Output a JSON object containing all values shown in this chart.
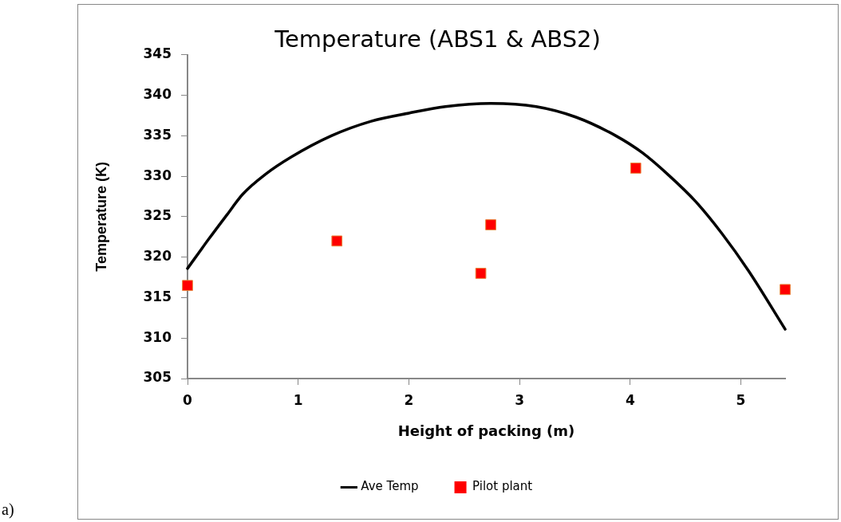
{
  "chart_data": {
    "type": "line",
    "title": "Temperature (ABS1 & ABS2)",
    "xlabel": "Height of packing (m)",
    "ylabel": "Temperature (K)",
    "xlim": [
      0,
      5.4
    ],
    "xticks": [
      0,
      1,
      2,
      3,
      4,
      5
    ],
    "ylim": [
      305,
      345
    ],
    "yticks": [
      305,
      310,
      315,
      320,
      325,
      330,
      335,
      340,
      345
    ],
    "grid": false,
    "legend": "bottom",
    "annotations": [
      "a)"
    ],
    "series": [
      {
        "name": "Ave Temp",
        "color": "#000000",
        "marker": "none",
        "x": [
          0,
          0.19,
          0.36,
          0.5,
          0.7,
          0.94,
          1.3,
          1.66,
          2.0,
          2.33,
          2.74,
          3.15,
          3.51,
          3.87,
          4.11,
          4.35,
          4.59,
          4.83,
          5.07,
          5.4
        ],
        "values": [
          318.6,
          322.2,
          325.3,
          327.8,
          330.2,
          332.4,
          335.0,
          336.8,
          337.8,
          338.6,
          339.0,
          338.6,
          337.3,
          335.0,
          332.9,
          330.1,
          326.9,
          322.9,
          318.3,
          311.1
        ]
      },
      {
        "name": "Pilot plant",
        "type": "scatter",
        "color": "#ff0000",
        "marker": "square",
        "x": [
          0,
          1.35,
          2.65,
          2.74,
          4.05,
          5.4
        ],
        "values": [
          316.5,
          322.0,
          318.0,
          324.0,
          331.0,
          316.0
        ]
      }
    ]
  }
}
